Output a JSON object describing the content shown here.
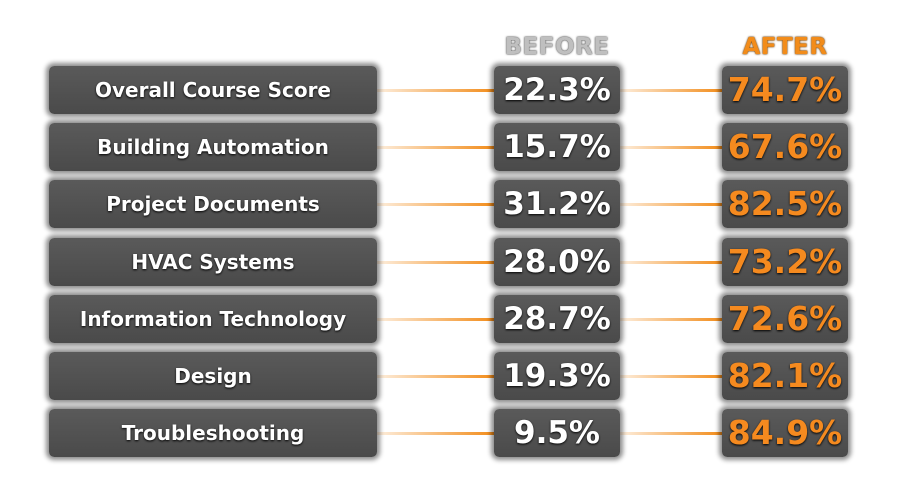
{
  "chart_data": {
    "type": "table",
    "title": "",
    "columns": [
      "BEFORE",
      "AFTER"
    ],
    "categories": [
      "Overall Course Score",
      "Building Automation",
      "Project Documents",
      "HVAC Systems",
      "Information Technology",
      "Design",
      "Troubleshooting"
    ],
    "series": [
      {
        "name": "BEFORE",
        "values": [
          22.3,
          15.7,
          31.2,
          28.0,
          28.7,
          19.3,
          9.5
        ]
      },
      {
        "name": "AFTER",
        "values": [
          74.7,
          67.6,
          82.5,
          73.2,
          72.6,
          82.1,
          84.9
        ]
      }
    ],
    "value_labels": {
      "BEFORE": [
        "22.3%",
        "15.7%",
        "31.2%",
        "28.0%",
        "28.7%",
        "19.3%",
        "9.5%"
      ],
      "AFTER": [
        "74.7%",
        "67.6%",
        "82.5%",
        "73.2%",
        "72.6%",
        "82.1%",
        "84.9%"
      ]
    },
    "unit": "%"
  },
  "colors": {
    "box": "#4f4f4f",
    "label_text": "#ffffff",
    "before_text": "#ffffff",
    "before_header": "#bfbfbf",
    "after_text": "#f58a1f",
    "after_header": "#f28c1a",
    "connector": "#f28c1a"
  }
}
